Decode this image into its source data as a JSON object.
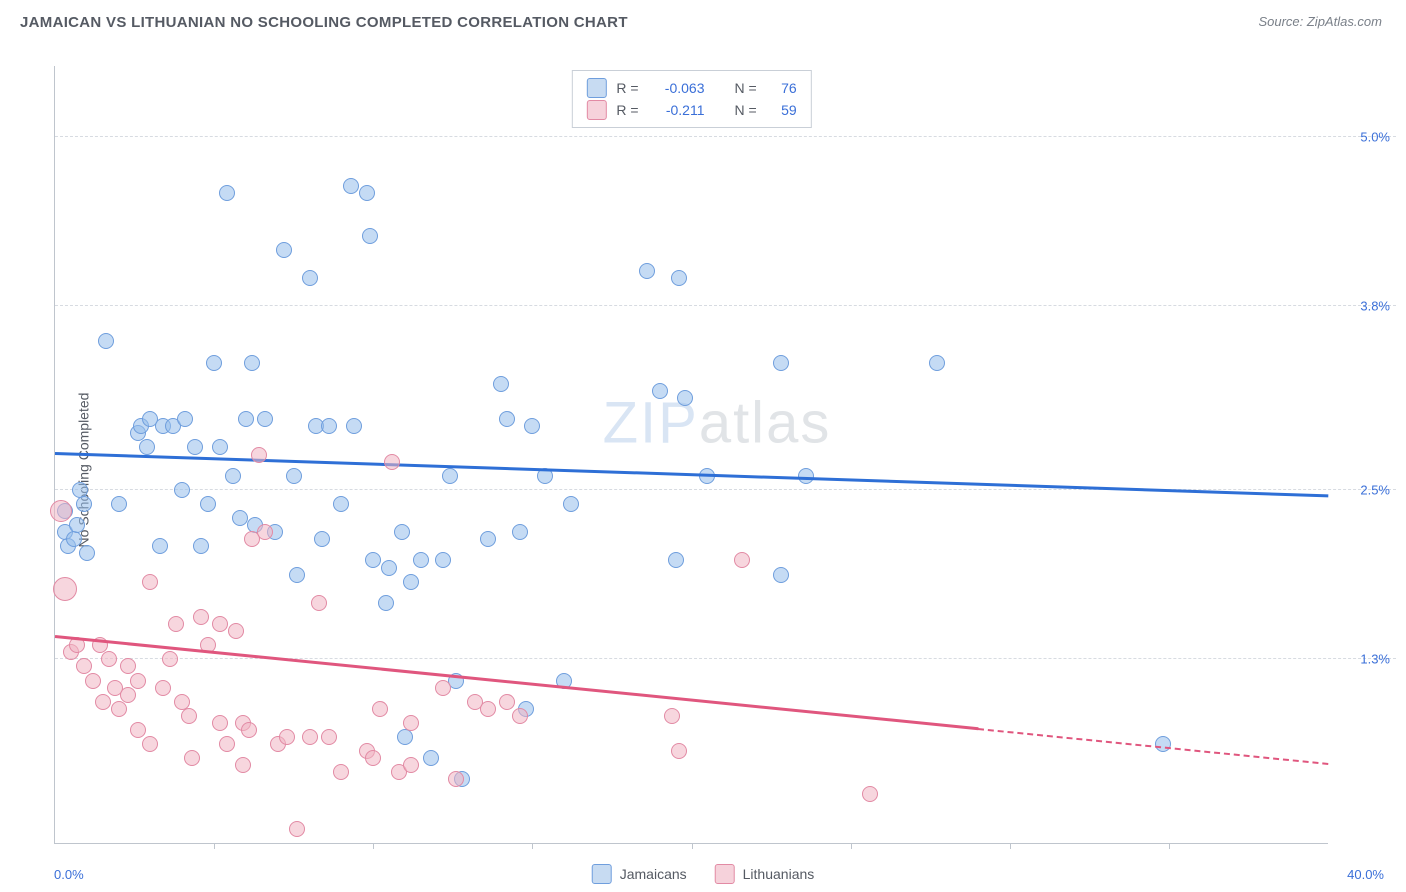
{
  "header": {
    "title": "JAMAICAN VS LITHUANIAN NO SCHOOLING COMPLETED CORRELATION CHART",
    "source_label": "Source: ",
    "source_value": "ZipAtlas.com"
  },
  "ylabel": "No Schooling Completed",
  "watermark": {
    "part1": "ZIP",
    "part2": "atlas"
  },
  "axes": {
    "x": {
      "min": 0.0,
      "max": 40.0,
      "min_label": "0.0%",
      "max_label": "40.0%",
      "tick_positions": [
        5,
        10,
        15,
        20,
        25,
        30,
        35
      ]
    },
    "y": {
      "min": 0.0,
      "max": 5.5,
      "grid": [
        {
          "v": 5.0,
          "label": "5.0%"
        },
        {
          "v": 3.8,
          "label": "3.8%"
        },
        {
          "v": 2.5,
          "label": "2.5%"
        },
        {
          "v": 1.3,
          "label": "1.3%"
        }
      ]
    }
  },
  "stats": {
    "rows": [
      {
        "swatch_fill": "#c7dbf2",
        "swatch_border": "#6f9edd",
        "r_label": "R =",
        "r": "-0.063",
        "n_label": "N =",
        "n": "76"
      },
      {
        "swatch_fill": "#f6d2db",
        "swatch_border": "#e28aa4",
        "r_label": "R =",
        "r": "-0.211",
        "n_label": "N =",
        "n": "59"
      }
    ]
  },
  "legend": [
    {
      "swatch_fill": "#c7dbf2",
      "swatch_border": "#6f9edd",
      "label": "Jamaicans"
    },
    {
      "swatch_fill": "#f6d2db",
      "swatch_border": "#e28aa4",
      "label": "Lithuanians"
    }
  ],
  "series": {
    "jamaican": {
      "color_fill": "rgba(150,190,235,0.55)",
      "color_border": "#6f9edd",
      "marker_radius": 8,
      "trend": {
        "color": "#2e6fd6",
        "y_at_xmin": 2.75,
        "y_at_xmax": 2.45,
        "x_solid_end": 40.0
      },
      "points": [
        {
          "x": 0.3,
          "y": 2.35
        },
        {
          "x": 0.3,
          "y": 2.2
        },
        {
          "x": 0.4,
          "y": 2.1
        },
        {
          "x": 0.6,
          "y": 2.15
        },
        {
          "x": 0.7,
          "y": 2.25
        },
        {
          "x": 0.8,
          "y": 2.5
        },
        {
          "x": 0.9,
          "y": 2.4
        },
        {
          "x": 1.6,
          "y": 3.55
        },
        {
          "x": 1.0,
          "y": 2.05
        },
        {
          "x": 2.6,
          "y": 2.9
        },
        {
          "x": 2.7,
          "y": 2.95
        },
        {
          "x": 3.0,
          "y": 3.0
        },
        {
          "x": 2.9,
          "y": 2.8
        },
        {
          "x": 3.4,
          "y": 2.95
        },
        {
          "x": 3.7,
          "y": 2.95
        },
        {
          "x": 4.1,
          "y": 3.0
        },
        {
          "x": 4.4,
          "y": 2.8
        },
        {
          "x": 4.6,
          "y": 2.1
        },
        {
          "x": 5.0,
          "y": 3.4
        },
        {
          "x": 5.4,
          "y": 4.6
        },
        {
          "x": 5.6,
          "y": 2.6
        },
        {
          "x": 5.8,
          "y": 2.3
        },
        {
          "x": 6.0,
          "y": 3.0
        },
        {
          "x": 6.2,
          "y": 3.4
        },
        {
          "x": 6.3,
          "y": 2.25
        },
        {
          "x": 6.6,
          "y": 3.0
        },
        {
          "x": 8.2,
          "y": 2.95
        },
        {
          "x": 7.2,
          "y": 4.2
        },
        {
          "x": 7.5,
          "y": 2.6
        },
        {
          "x": 8.0,
          "y": 4.0
        },
        {
          "x": 8.4,
          "y": 2.15
        },
        {
          "x": 8.6,
          "y": 2.95
        },
        {
          "x": 9.3,
          "y": 4.65
        },
        {
          "x": 9.8,
          "y": 4.6
        },
        {
          "x": 9.4,
          "y": 2.95
        },
        {
          "x": 9.9,
          "y": 4.3
        },
        {
          "x": 10.0,
          "y": 2.0
        },
        {
          "x": 10.4,
          "y": 1.7
        },
        {
          "x": 10.5,
          "y": 1.95
        },
        {
          "x": 11.2,
          "y": 1.85
        },
        {
          "x": 11.5,
          "y": 2.0
        },
        {
          "x": 11.8,
          "y": 0.6
        },
        {
          "x": 12.2,
          "y": 2.0
        },
        {
          "x": 12.4,
          "y": 2.6
        },
        {
          "x": 12.6,
          "y": 1.15
        },
        {
          "x": 12.8,
          "y": 0.45
        },
        {
          "x": 13.6,
          "y": 2.15
        },
        {
          "x": 14.2,
          "y": 3.0
        },
        {
          "x": 14.0,
          "y": 3.25
        },
        {
          "x": 14.6,
          "y": 2.2
        },
        {
          "x": 15.4,
          "y": 2.6
        },
        {
          "x": 16.0,
          "y": 1.15
        },
        {
          "x": 16.2,
          "y": 2.4
        },
        {
          "x": 18.6,
          "y": 4.05
        },
        {
          "x": 19.0,
          "y": 3.2
        },
        {
          "x": 19.5,
          "y": 2.0
        },
        {
          "x": 19.8,
          "y": 3.15
        },
        {
          "x": 19.6,
          "y": 4.0
        },
        {
          "x": 20.5,
          "y": 2.6
        },
        {
          "x": 22.8,
          "y": 1.9
        },
        {
          "x": 22.8,
          "y": 3.4
        },
        {
          "x": 23.6,
          "y": 2.6
        },
        {
          "x": 27.7,
          "y": 3.4
        },
        {
          "x": 34.8,
          "y": 0.7
        },
        {
          "x": 3.3,
          "y": 2.1
        },
        {
          "x": 4.8,
          "y": 2.4
        },
        {
          "x": 6.9,
          "y": 2.2
        },
        {
          "x": 7.6,
          "y": 1.9
        },
        {
          "x": 9.0,
          "y": 2.4
        },
        {
          "x": 10.9,
          "y": 2.2
        },
        {
          "x": 11.0,
          "y": 0.75
        },
        {
          "x": 14.8,
          "y": 0.95
        },
        {
          "x": 15.0,
          "y": 2.95
        },
        {
          "x": 5.2,
          "y": 2.8
        },
        {
          "x": 4.0,
          "y": 2.5
        },
        {
          "x": 2.0,
          "y": 2.4
        }
      ]
    },
    "lithuanian": {
      "color_fill": "rgba(240,180,195,0.55)",
      "color_border": "#e28aa4",
      "marker_radius": 8,
      "trend": {
        "color": "#e0567e",
        "y_at_xmin": 1.45,
        "y_at_xmax": 0.55,
        "x_solid_end": 29.0
      },
      "points": [
        {
          "x": 0.2,
          "y": 2.35,
          "r": 11
        },
        {
          "x": 0.3,
          "y": 1.8,
          "r": 12
        },
        {
          "x": 0.5,
          "y": 1.35
        },
        {
          "x": 0.7,
          "y": 1.4
        },
        {
          "x": 0.9,
          "y": 1.25
        },
        {
          "x": 1.4,
          "y": 1.4
        },
        {
          "x": 1.2,
          "y": 1.15
        },
        {
          "x": 1.5,
          "y": 1.0
        },
        {
          "x": 1.7,
          "y": 1.3
        },
        {
          "x": 1.9,
          "y": 1.1
        },
        {
          "x": 2.0,
          "y": 0.95
        },
        {
          "x": 2.3,
          "y": 1.25
        },
        {
          "x": 2.3,
          "y": 1.05
        },
        {
          "x": 2.6,
          "y": 0.8
        },
        {
          "x": 2.6,
          "y": 1.15
        },
        {
          "x": 3.0,
          "y": 0.7
        },
        {
          "x": 3.0,
          "y": 1.85
        },
        {
          "x": 3.6,
          "y": 1.3
        },
        {
          "x": 3.8,
          "y": 1.55
        },
        {
          "x": 4.0,
          "y": 1.0
        },
        {
          "x": 4.2,
          "y": 0.9
        },
        {
          "x": 4.6,
          "y": 1.6
        },
        {
          "x": 4.8,
          "y": 1.4
        },
        {
          "x": 5.2,
          "y": 0.85
        },
        {
          "x": 5.2,
          "y": 1.55
        },
        {
          "x": 5.4,
          "y": 0.7
        },
        {
          "x": 5.7,
          "y": 1.5
        },
        {
          "x": 5.9,
          "y": 0.85
        },
        {
          "x": 5.9,
          "y": 0.55
        },
        {
          "x": 6.1,
          "y": 0.8
        },
        {
          "x": 6.2,
          "y": 2.15
        },
        {
          "x": 6.4,
          "y": 2.75
        },
        {
          "x": 6.6,
          "y": 2.2
        },
        {
          "x": 7.0,
          "y": 0.7
        },
        {
          "x": 7.3,
          "y": 0.75
        },
        {
          "x": 7.6,
          "y": 0.1
        },
        {
          "x": 8.0,
          "y": 0.75
        },
        {
          "x": 8.3,
          "y": 1.7
        },
        {
          "x": 8.6,
          "y": 0.75
        },
        {
          "x": 9.0,
          "y": 0.5
        },
        {
          "x": 9.8,
          "y": 0.65
        },
        {
          "x": 10.0,
          "y": 0.6
        },
        {
          "x": 10.8,
          "y": 0.5
        },
        {
          "x": 10.2,
          "y": 0.95
        },
        {
          "x": 10.6,
          "y": 2.7
        },
        {
          "x": 11.2,
          "y": 0.85
        },
        {
          "x": 11.2,
          "y": 0.55
        },
        {
          "x": 12.2,
          "y": 1.1
        },
        {
          "x": 12.6,
          "y": 0.45
        },
        {
          "x": 13.2,
          "y": 1.0
        },
        {
          "x": 13.6,
          "y": 0.95
        },
        {
          "x": 14.2,
          "y": 1.0
        },
        {
          "x": 14.6,
          "y": 0.9
        },
        {
          "x": 19.4,
          "y": 0.9
        },
        {
          "x": 19.6,
          "y": 0.65
        },
        {
          "x": 21.6,
          "y": 2.0
        },
        {
          "x": 25.6,
          "y": 0.35
        },
        {
          "x": 3.4,
          "y": 1.1
        },
        {
          "x": 4.3,
          "y": 0.6
        }
      ]
    }
  }
}
